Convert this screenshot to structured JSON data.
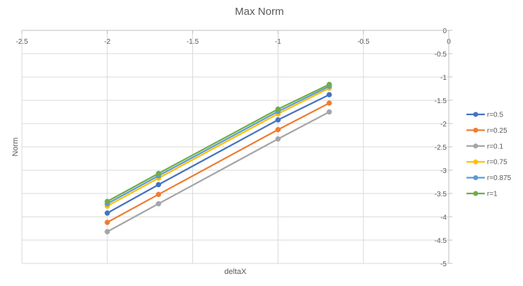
{
  "chart_data": {
    "type": "line",
    "title": "Max Norm",
    "xlabel": "deltaX",
    "ylabel": "Norm",
    "xlim": [
      -2.5,
      0
    ],
    "ylim": [
      -5,
      0
    ],
    "x_ticks": [
      "-2.5",
      "-2",
      "-1.5",
      "-1",
      "-0.5",
      "0"
    ],
    "y_ticks": [
      "0",
      "-0.5",
      "-1",
      "-1.5",
      "-2",
      "-2.5",
      "-3",
      "-3.5",
      "-4",
      "-4.5",
      "-5"
    ],
    "x": [
      -2,
      -1.7,
      -1,
      -0.7
    ],
    "grid": true,
    "legend_position": "right",
    "series": [
      {
        "name": "r=0.5",
        "color": "#4472C4",
        "values": [
          -3.92,
          -3.31,
          -1.92,
          -1.38
        ]
      },
      {
        "name": "r=0.25",
        "color": "#ED7D31",
        "values": [
          -4.12,
          -3.52,
          -2.13,
          -1.56
        ]
      },
      {
        "name": "r=0.1",
        "color": "#A5A5A5",
        "values": [
          -4.32,
          -3.72,
          -2.33,
          -1.75
        ]
      },
      {
        "name": "r=0.75",
        "color": "#FFC000",
        "values": [
          -3.77,
          -3.17,
          -1.79,
          -1.24
        ]
      },
      {
        "name": "r=0.875",
        "color": "#5B9BD5",
        "values": [
          -3.72,
          -3.12,
          -1.74,
          -1.2
        ]
      },
      {
        "name": "r=1",
        "color": "#70AD47",
        "values": [
          -3.67,
          -3.07,
          -1.69,
          -1.16
        ]
      }
    ]
  }
}
